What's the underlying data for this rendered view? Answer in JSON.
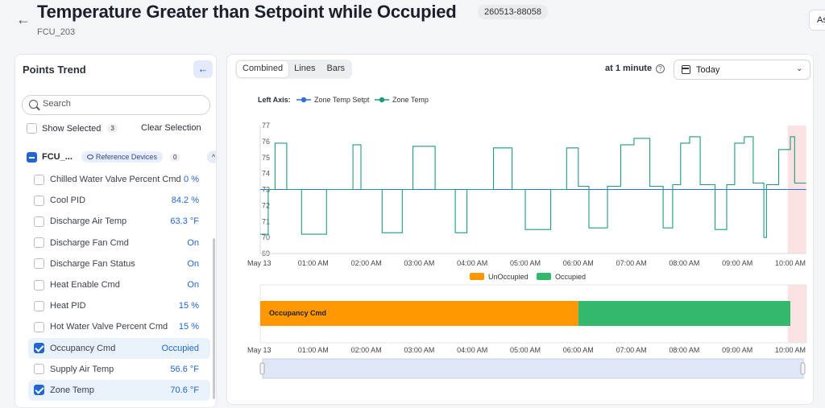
{
  "header": {
    "title": "Temperature Greater than Setpoint while Occupied",
    "event_id": "260513-88058",
    "subtitle": "FCU_203",
    "right_button": "As"
  },
  "left_panel": {
    "title": "Points Trend",
    "search_placeholder": "Search",
    "show_selected": "Show Selected",
    "selected_count": "3",
    "clear_selection": "Clear Selection",
    "group": {
      "name": "FCU_...",
      "reference_devices": "Reference Devices",
      "reference_count": "0"
    },
    "points": [
      {
        "name": "Chilled Water Valve Percent Cmd",
        "value": "0 %",
        "checked": false
      },
      {
        "name": "Cool PID",
        "value": "84.2 %",
        "checked": false
      },
      {
        "name": "Discharge Air Temp",
        "value": "63.3 °F",
        "checked": false
      },
      {
        "name": "Discharge Fan Cmd",
        "value": "On",
        "checked": false
      },
      {
        "name": "Discharge Fan Status",
        "value": "On",
        "checked": false
      },
      {
        "name": "Heat Enable Cmd",
        "value": "On",
        "checked": false
      },
      {
        "name": "Heat PID",
        "value": "15 %",
        "checked": false
      },
      {
        "name": "Hot Water Valve Percent Cmd",
        "value": "15 %",
        "checked": false
      },
      {
        "name": "Occupancy Cmd",
        "value": "Occupied",
        "checked": true
      },
      {
        "name": "Supply Air Temp",
        "value": "56.6 °F",
        "checked": false
      },
      {
        "name": "Zone Temp",
        "value": "70.6 °F",
        "checked": true
      }
    ]
  },
  "toolbar": {
    "tabs": [
      "Combined",
      "Lines",
      "Bars"
    ],
    "active_tab": "Combined",
    "interval": "at 1 minute",
    "date_range": "Today"
  },
  "colors": {
    "setpoint": "#2f6fe0",
    "zone_temp": "#1f9a80",
    "unoccupied": "#ff9800",
    "occupied": "#33b86e",
    "highlight": "#fbe3e3"
  },
  "chart_data": [
    {
      "type": "line",
      "legend_title": "Left Axis:",
      "ylim": [
        69,
        77
      ],
      "yticks": [
        69,
        70,
        71,
        72,
        73,
        74,
        75,
        76,
        77
      ],
      "x_tick_labels": [
        "May 13",
        "01:00 AM",
        "02:00 AM",
        "03:00 AM",
        "04:00 AM",
        "05:00 AM",
        "06:00 AM",
        "07:00 AM",
        "08:00 AM",
        "09:00 AM",
        "10:00 AM"
      ],
      "series": [
        {
          "name": "Zone Temp Setpt",
          "x": [
            0,
            10.3
          ],
          "y": [
            73,
            73
          ]
        },
        {
          "name": "Zone Temp",
          "x": [
            0,
            0.15,
            0.15,
            0.28,
            0.28,
            0.5,
            0.5,
            0.78,
            0.78,
            1.25,
            1.25,
            1.75,
            1.75,
            1.9,
            1.9,
            2.3,
            2.3,
            2.68,
            2.68,
            2.88,
            2.88,
            3.3,
            3.3,
            3.68,
            3.68,
            3.9,
            3.9,
            4.4,
            4.4,
            4.75,
            4.75,
            5.0,
            5.0,
            5.48,
            5.48,
            5.78,
            5.78,
            6.0,
            6.0,
            6.2,
            6.2,
            6.55,
            6.55,
            6.8,
            6.8,
            7.05,
            7.05,
            7.35,
            7.35,
            7.6,
            7.6,
            7.78,
            7.78,
            7.93,
            7.93,
            8.1,
            8.1,
            8.3,
            8.3,
            8.58,
            8.58,
            8.8,
            8.8,
            8.95,
            8.95,
            9.13,
            9.13,
            9.3,
            9.3,
            9.5,
            9.5,
            9.55,
            9.55,
            9.78,
            9.78,
            10.0,
            10.0,
            10.08,
            10.08,
            10.3
          ],
          "y": [
            70.2,
            70.2,
            73,
            73,
            75.9,
            75.9,
            73,
            73,
            70.2,
            70.2,
            73,
            73,
            75.8,
            75.8,
            73,
            73,
            70.3,
            70.3,
            73,
            73,
            75.7,
            75.7,
            73,
            73,
            70.3,
            70.3,
            73,
            73,
            75.6,
            75.6,
            73,
            73,
            70.5,
            70.5,
            73,
            73,
            75.6,
            75.6,
            73.2,
            73.2,
            70.6,
            70.6,
            73.2,
            73.2,
            75.8,
            75.8,
            76.2,
            76.2,
            73.2,
            73.2,
            70.6,
            70.6,
            73.3,
            73.3,
            75.9,
            75.9,
            76.3,
            76.3,
            73.3,
            73.3,
            70.5,
            70.5,
            73.3,
            73.3,
            75.9,
            75.9,
            76.3,
            76.3,
            73.4,
            73.4,
            70.0,
            70.0,
            73.3,
            73.3,
            75.5,
            75.5,
            76.3,
            76.3,
            73.4,
            73.4
          ]
        }
      ]
    },
    {
      "type": "bar",
      "legend": [
        "UnOccupied",
        "Occupied"
      ],
      "row_label": "Occupancy Cmd",
      "x_tick_labels": [
        "May 13",
        "01:00 AM",
        "02:00 AM",
        "03:00 AM",
        "04:00 AM",
        "05:00 AM",
        "06:00 AM",
        "07:00 AM",
        "08:00 AM",
        "09:00 AM",
        "10:00 AM"
      ],
      "segments": [
        {
          "state": "UnOccupied",
          "start": 0,
          "end": 6.0
        },
        {
          "state": "Occupied",
          "start": 6.0,
          "end": 10.0
        }
      ]
    }
  ]
}
